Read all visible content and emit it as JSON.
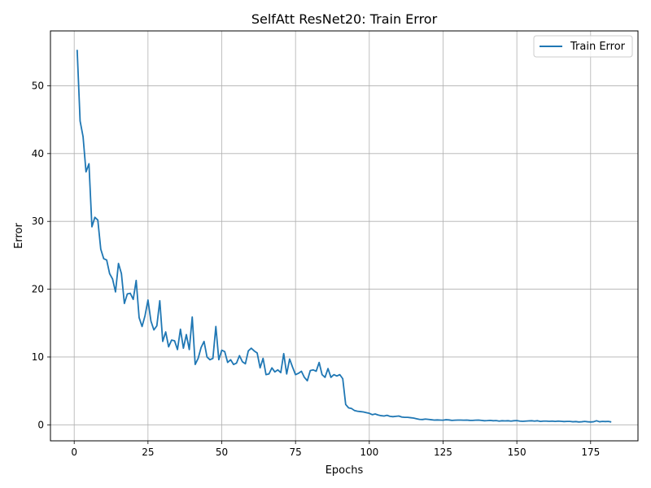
{
  "chart_data": {
    "type": "line",
    "title": "SelfAtt ResNet20: Train Error",
    "xlabel": "Epochs",
    "ylabel": "Error",
    "xlim": [
      -8.05,
      191.05
    ],
    "ylim": [
      -2.36,
      58.09
    ],
    "xticks": [
      0,
      25,
      50,
      75,
      100,
      125,
      150,
      175
    ],
    "yticks": [
      0,
      10,
      20,
      30,
      40,
      50
    ],
    "grid": true,
    "legend_position": "top-right",
    "line_color": "#1f77b4",
    "series": [
      {
        "name": "Train Error",
        "x": [
          1,
          2,
          3,
          4,
          5,
          6,
          7,
          8,
          9,
          10,
          11,
          12,
          13,
          14,
          15,
          16,
          17,
          18,
          19,
          20,
          21,
          22,
          23,
          24,
          25,
          26,
          27,
          28,
          29,
          30,
          31,
          32,
          33,
          34,
          35,
          36,
          37,
          38,
          39,
          40,
          41,
          42,
          43,
          44,
          45,
          46,
          47,
          48,
          49,
          50,
          51,
          52,
          53,
          54,
          55,
          56,
          57,
          58,
          59,
          60,
          61,
          62,
          63,
          64,
          65,
          66,
          67,
          68,
          69,
          70,
          71,
          72,
          73,
          74,
          75,
          76,
          77,
          78,
          79,
          80,
          81,
          82,
          83,
          84,
          85,
          86,
          87,
          88,
          89,
          90,
          91,
          92,
          93,
          94,
          95,
          96,
          97,
          98,
          99,
          100,
          101,
          102,
          103,
          104,
          105,
          106,
          107,
          108,
          109,
          110,
          111,
          112,
          113,
          114,
          115,
          116,
          117,
          118,
          119,
          120,
          121,
          122,
          123,
          124,
          125,
          126,
          127,
          128,
          129,
          130,
          131,
          132,
          133,
          134,
          135,
          136,
          137,
          138,
          139,
          140,
          141,
          142,
          143,
          144,
          145,
          146,
          147,
          148,
          149,
          150,
          151,
          152,
          153,
          154,
          155,
          156,
          157,
          158,
          159,
          160,
          161,
          162,
          163,
          164,
          165,
          166,
          167,
          168,
          169,
          170,
          171,
          172,
          173,
          174,
          175,
          176,
          177,
          178,
          179,
          180,
          181,
          182
        ],
        "values": [
          55.3,
          44.8,
          42.5,
          37.3,
          38.5,
          29.2,
          30.6,
          30.2,
          25.9,
          24.5,
          24.3,
          22.3,
          21.5,
          19.6,
          23.8,
          22.3,
          17.9,
          19.3,
          19.4,
          18.5,
          21.3,
          15.8,
          14.5,
          16.1,
          18.4,
          15.3,
          14.0,
          14.6,
          18.3,
          12.3,
          13.7,
          11.5,
          12.5,
          12.4,
          11.1,
          14.1,
          11.3,
          13.3,
          11.1,
          15.9,
          8.9,
          9.8,
          11.4,
          12.3,
          10.0,
          9.6,
          9.8,
          14.5,
          9.6,
          11.0,
          10.8,
          9.2,
          9.6,
          8.9,
          9.1,
          10.2,
          9.3,
          9.0,
          10.9,
          11.3,
          10.9,
          10.6,
          8.4,
          9.8,
          7.4,
          7.5,
          8.4,
          7.8,
          8.1,
          7.7,
          10.5,
          7.5,
          9.7,
          8.5,
          7.4,
          7.6,
          7.9,
          7.0,
          6.5,
          8.0,
          8.1,
          7.9,
          9.2,
          7.4,
          7.0,
          8.3,
          7.0,
          7.4,
          7.2,
          7.4,
          6.8,
          3.0,
          2.5,
          2.4,
          2.1,
          2.0,
          1.95,
          1.9,
          1.8,
          1.7,
          1.5,
          1.6,
          1.45,
          1.35,
          1.3,
          1.4,
          1.25,
          1.2,
          1.25,
          1.3,
          1.15,
          1.1,
          1.1,
          1.05,
          1.0,
          0.9,
          0.8,
          0.78,
          0.85,
          0.8,
          0.75,
          0.7,
          0.72,
          0.7,
          0.68,
          0.75,
          0.72,
          0.65,
          0.68,
          0.7,
          0.7,
          0.68,
          0.7,
          0.66,
          0.65,
          0.68,
          0.7,
          0.65,
          0.6,
          0.62,
          0.65,
          0.6,
          0.62,
          0.55,
          0.6,
          0.58,
          0.6,
          0.55,
          0.6,
          0.62,
          0.55,
          0.52,
          0.55,
          0.58,
          0.6,
          0.55,
          0.6,
          0.5,
          0.55,
          0.55,
          0.52,
          0.55,
          0.5,
          0.55,
          0.52,
          0.48,
          0.5,
          0.5,
          0.45,
          0.48,
          0.42,
          0.45,
          0.5,
          0.45,
          0.42,
          0.45,
          0.6,
          0.45,
          0.5,
          0.48,
          0.5,
          0.42
        ]
      }
    ]
  }
}
